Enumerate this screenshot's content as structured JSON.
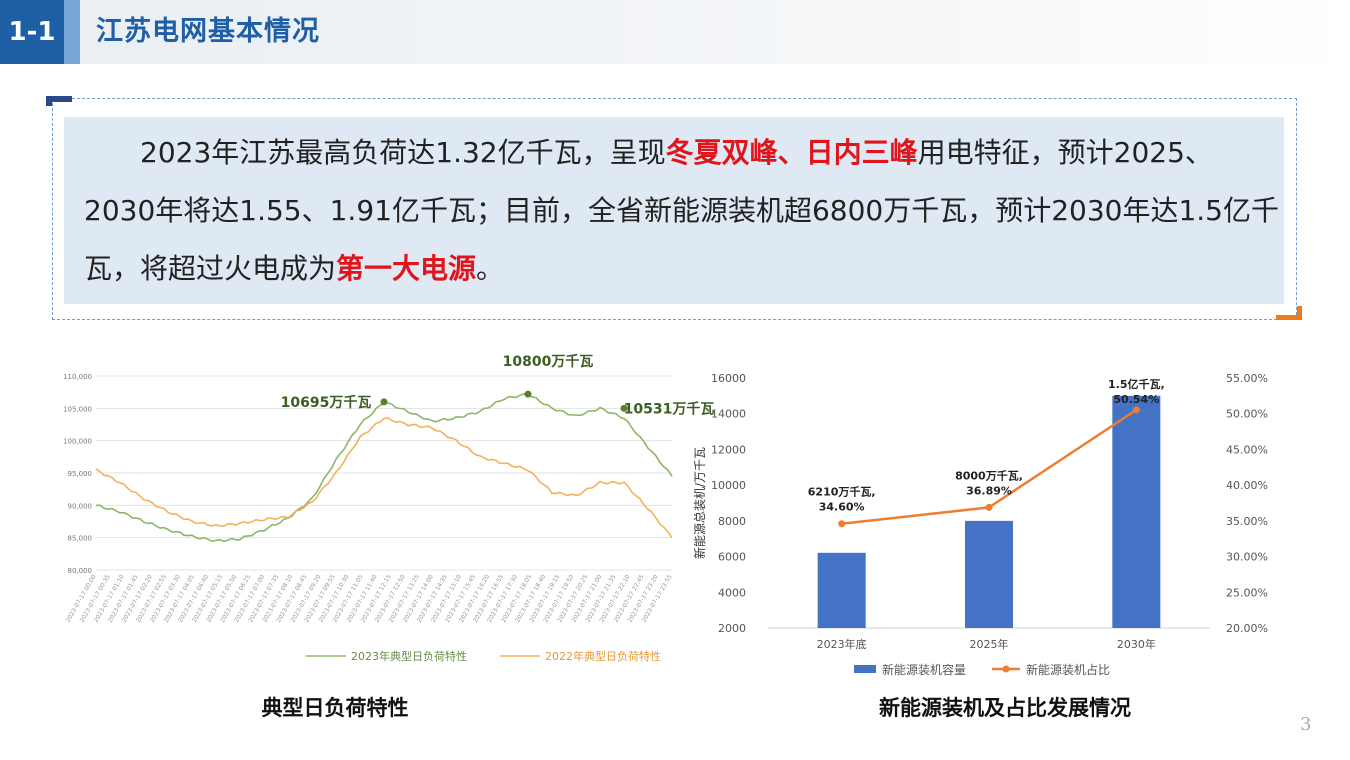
{
  "header": {
    "section_number": "1-1",
    "title": "江苏电网基本情况"
  },
  "callout": {
    "part1": "2023年江苏最高负荷达1.32亿千瓦，呈现",
    "highlight1": "冬夏双峰、日内三峰",
    "part2": "用电特征，预计2025、2030年将达1.55、1.91亿千瓦；目前，全省新能源装机超6800万千瓦，预计2030年达1.5亿千瓦，将超过火电成为",
    "highlight2": "第一大电源",
    "part3": "。"
  },
  "colors": {
    "brand_blue": "#1f5fa6",
    "highlight_red": "#e0151b",
    "series_2023_green": "#8fb56a",
    "series_2022_orange": "#f2b25c",
    "bar_blue": "#4472c4",
    "line_orange": "#ed7d31",
    "peak_marker_green": "#5b7f2e"
  },
  "chart_data": [
    {
      "type": "line",
      "caption": "典型日负荷特性",
      "ylim": [
        80000,
        110000
      ],
      "y_ticks": [
        "110,000",
        "105,000",
        "100,000",
        "95,000",
        "90,000",
        "85,000",
        "80,000"
      ],
      "x_tick_labels": [
        "2023-07-17 00:00",
        "2023-07-17 00:35",
        "2023-07-17 01:10",
        "2023-07-17 01:45",
        "2023-07-17 02:20",
        "2023-07-17 02:55",
        "2023-07-17 03:30",
        "2023-07-17 04:05",
        "2023-07-17 04:40",
        "2023-07-17 05:15",
        "2023-07-17 05:50",
        "2023-07-17 06:25",
        "2023-07-17 07:00",
        "2023-07-17 07:35",
        "2023-07-17 08:10",
        "2023-07-17 08:45",
        "2023-07-17 09:20",
        "2023-07-17 09:55",
        "2023-07-17 10:30",
        "2023-07-17 11:05",
        "2023-07-17 11:40",
        "2023-07-17 12:15",
        "2023-07-17 12:50",
        "2023-07-17 13:25",
        "2023-07-17 14:00",
        "2023-07-17 14:35",
        "2023-07-17 15:10",
        "2023-07-17 15:45",
        "2023-07-17 16:20",
        "2023-07-17 16:55",
        "2023-07-17 17:30",
        "2023-07-17 18:05",
        "2023-07-17 18:40",
        "2023-07-17 19:15",
        "2023-07-17 19:50",
        "2023-07-17 20:25",
        "2023-07-17 21:00",
        "2023-07-17 21:35",
        "2023-07-17 22:10",
        "2023-07-17 22:45",
        "2023-07-17 23:20",
        "2023-07-17 23:55"
      ],
      "legend_position": "bottom",
      "series": [
        {
          "name": "2023年典型日负荷特性",
          "color": "#8fb56a",
          "x": [
            0,
            1,
            2,
            3,
            4,
            5,
            6,
            7,
            8,
            9,
            10,
            11,
            12,
            13,
            14,
            15,
            16,
            17,
            18,
            19,
            20,
            21,
            22,
            23,
            24
          ],
          "y": [
            90000,
            89000,
            87500,
            86200,
            85200,
            84500,
            84800,
            86200,
            88000,
            91000,
            97000,
            102500,
            106000,
            104500,
            103000,
            103500,
            104500,
            106500,
            107200,
            105000,
            103800,
            105000,
            103500,
            99000,
            94500
          ]
        },
        {
          "name": "2022年典型日负荷特性",
          "color": "#f2b25c",
          "x": [
            0,
            1,
            2,
            3,
            4,
            5,
            6,
            7,
            8,
            9,
            10,
            11,
            12,
            13,
            14,
            15,
            16,
            17,
            18,
            19,
            20,
            21,
            22,
            23,
            24
          ],
          "y": [
            95500,
            93500,
            91000,
            89000,
            87500,
            86800,
            87200,
            87800,
            88200,
            90500,
            95000,
            100500,
            103500,
            102500,
            102000,
            100000,
            97500,
            96500,
            95500,
            92000,
            91500,
            93500,
            93500,
            89500,
            85000
          ]
        }
      ],
      "annotations": [
        {
          "label": "10695万千瓦",
          "x": 12,
          "y": 106000
        },
        {
          "label": "10800万千瓦",
          "x": 18,
          "y": 107200
        },
        {
          "label": "10531万千瓦",
          "x": 22,
          "y": 105000
        }
      ]
    },
    {
      "type": "bar",
      "caption": "新能源装机及占比发展情况",
      "categories": [
        "2023年底",
        "2025年",
        "2030年"
      ],
      "ylabel": "新能源总装机/万千瓦",
      "ylim": [
        2000,
        16000
      ],
      "y_ticks": [
        "16000",
        "14000",
        "12000",
        "10000",
        "8000",
        "6000",
        "4000",
        "2000"
      ],
      "y2lim": [
        20,
        55
      ],
      "y2_ticks": [
        "55.00%",
        "50.00%",
        "45.00%",
        "40.00%",
        "35.00%",
        "30.00%",
        "25.00%",
        "20.00%"
      ],
      "legend_position": "bottom",
      "series": [
        {
          "name": "新能源装机容量",
          "kind": "bar",
          "axis": "left",
          "color": "#4472c4",
          "values": [
            6210,
            8000,
            15000
          ]
        },
        {
          "name": "新能源装机占比",
          "kind": "line",
          "axis": "right",
          "color": "#ed7d31",
          "values": [
            34.6,
            36.89,
            50.54
          ]
        }
      ],
      "data_labels": [
        {
          "line1": "6210万千瓦,",
          "line2": "34.60%"
        },
        {
          "line1": "8000万千瓦,",
          "line2": "36.89%"
        },
        {
          "line1": "1.5亿千瓦,",
          "line2": "50.54%"
        }
      ]
    }
  ],
  "footer": {
    "page_number": "3"
  }
}
